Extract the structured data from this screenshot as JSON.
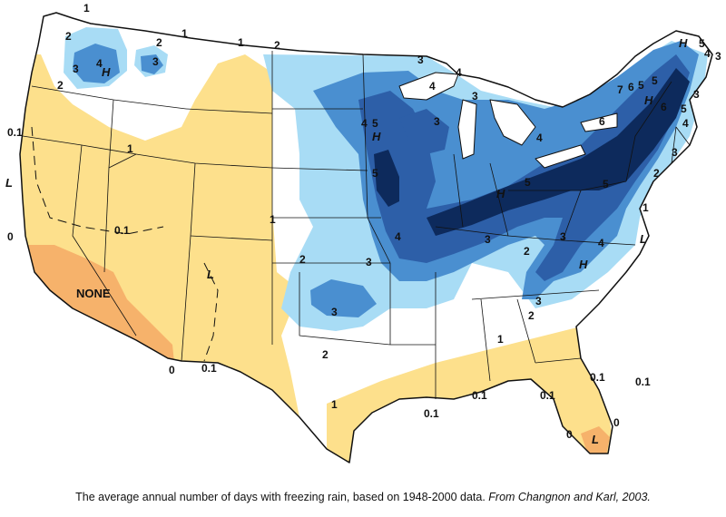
{
  "caption": {
    "text": "The average annual number of days with freezing rain, based on 1948-2000 data.",
    "source": "From Changnon and Karl, 2003."
  },
  "legend_colors": {
    "zone_0": "#f6b26b",
    "zone_0_1": "#fde08c",
    "zone_1": "#ffffff",
    "zone_2": "#a8dcf5",
    "zone_3": "#4a8fd0",
    "zone_4": "#2d5fa8",
    "zone_5": "#0d2a5c"
  },
  "labels": {
    "none": "NONE",
    "L": "L",
    "H": "H",
    "c0": "0",
    "c01": "0.1",
    "c1": "1",
    "c2": "2",
    "c3": "3",
    "c4": "4",
    "c5": "5",
    "c6": "6",
    "c7": "7"
  }
}
